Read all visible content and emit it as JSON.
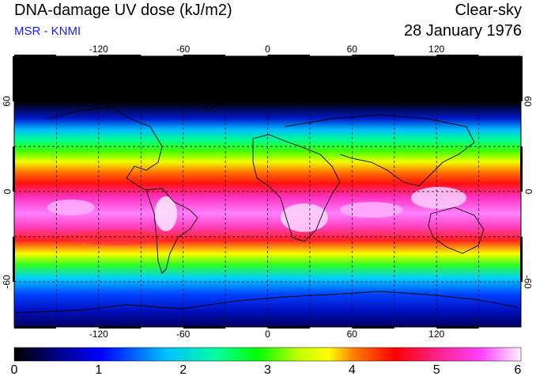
{
  "header": {
    "title": "DNA-damage UV dose (kJ/m2)",
    "source": "MSR - KNMI",
    "condition": "Clear-sky",
    "date": "28 January 1976"
  },
  "map": {
    "projection": "equirectangular",
    "lon_range": [
      -180,
      180
    ],
    "lat_range": [
      -90,
      90
    ],
    "grid": "dashed 30-degree graticule",
    "colormap": [
      "#000000",
      "#000080",
      "#0000ff",
      "#00c0ff",
      "#00ffa0",
      "#00ff00",
      "#c0ff00",
      "#ffff00",
      "#ff8000",
      "#ff0000",
      "#ff2080",
      "#ff40ff",
      "#ffd0ff",
      "#ffffff"
    ]
  },
  "axes": {
    "lon_ticks": [
      "-120",
      "-60",
      "0",
      "60",
      "120"
    ],
    "lat_ticks_left": [
      "60",
      "0",
      "-60"
    ],
    "lat_ticks_right": [
      "60",
      "0",
      "-60"
    ]
  },
  "colorbar": {
    "min": 0,
    "max": 6,
    "labels": [
      "0",
      "1",
      "2",
      "3",
      "4",
      "5",
      "6"
    ]
  }
}
